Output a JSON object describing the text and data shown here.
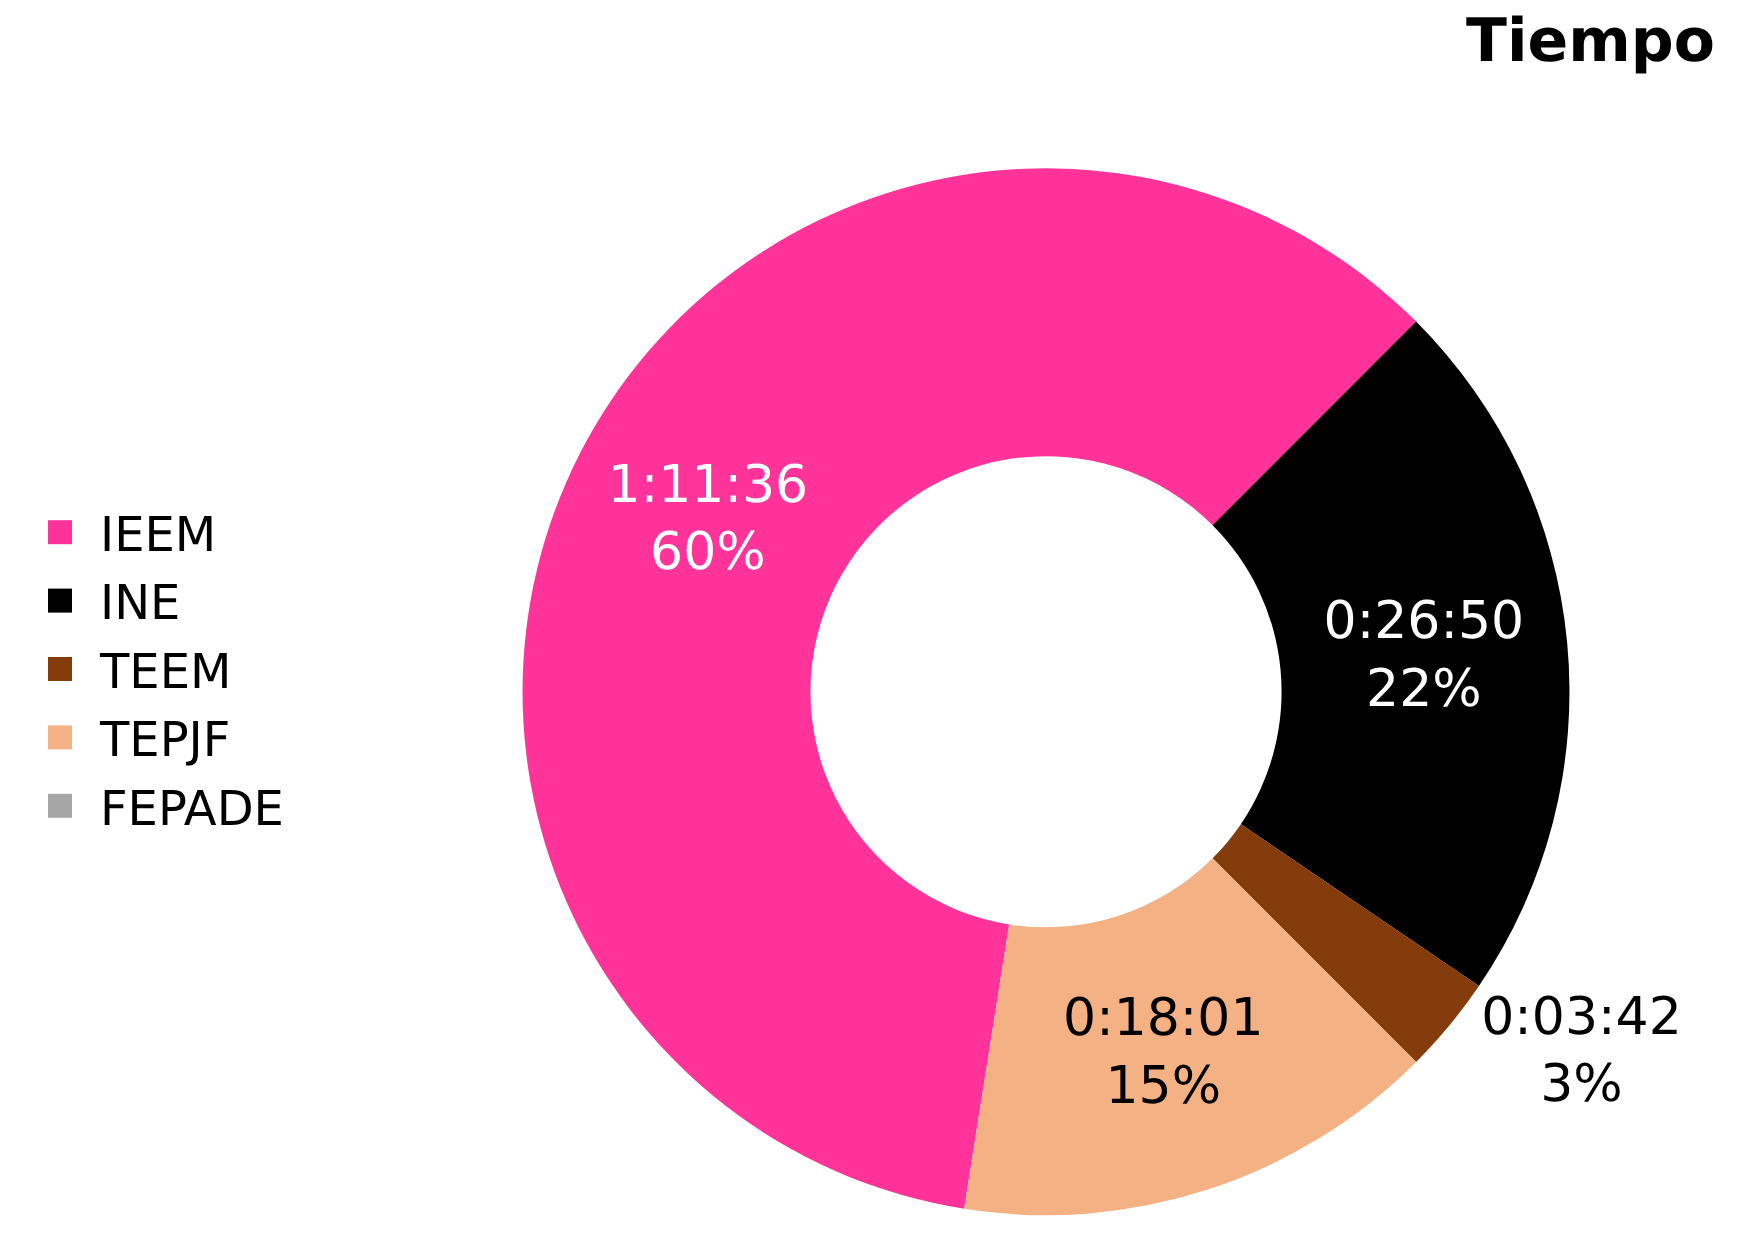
{
  "chart_data": {
    "type": "donut",
    "title": "Tiempo",
    "categories": [
      "IEEM",
      "INE",
      "TEEM",
      "TEPJF",
      "FEPADE"
    ],
    "values": [
      60,
      22,
      3,
      15,
      0
    ],
    "colors": [
      "#ff3399",
      "#000000",
      "#843c0c",
      "#f4b183",
      "#a6a6a6"
    ],
    "value_labels": [
      "1:11:36\n60%",
      "0:26:50\n22%",
      "0:03:42\n3%",
      "0:18:01\n15%",
      null
    ],
    "legend": "left"
  }
}
